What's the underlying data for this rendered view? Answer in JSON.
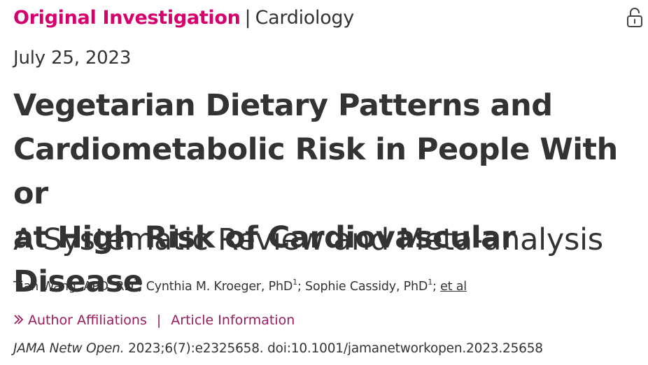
{
  "header": {
    "article_type": "Original Investigation",
    "separator": "|",
    "subject": "Cardiology",
    "access_icon": "unlocked-padlock-icon"
  },
  "publication_date": "July 25, 2023",
  "title": {
    "main_line_1": "Vegetarian Dietary Patterns and",
    "main_line_2": "Cardiometabolic Risk in People With or",
    "main_line_3": "at High Risk of Cardiovascular Disease",
    "subtitle": "A Systematic Review and Meta-analysis"
  },
  "authors": [
    {
      "name": "Tian Wang, APD, RD",
      "affiliation": "1",
      "separator": ";"
    },
    {
      "name": "Cynthia M. Kroeger, PhD",
      "affiliation": "1",
      "separator": ";"
    },
    {
      "name": "Sophie Cassidy, PhD",
      "affiliation": "1",
      "separator": ";"
    }
  ],
  "et_al": "et al",
  "links": {
    "author_affiliations": "Author Affiliations",
    "divider": "|",
    "article_information": "Article Information"
  },
  "citation": {
    "journal": "JAMA Netw Open.",
    "details": "2023;6(7):e2325658. doi:10.1001/jamanetworkopen.2023.25658"
  },
  "colors": {
    "article_type": "#d6006d",
    "link": "#9b1c5e",
    "text": "#333333"
  }
}
